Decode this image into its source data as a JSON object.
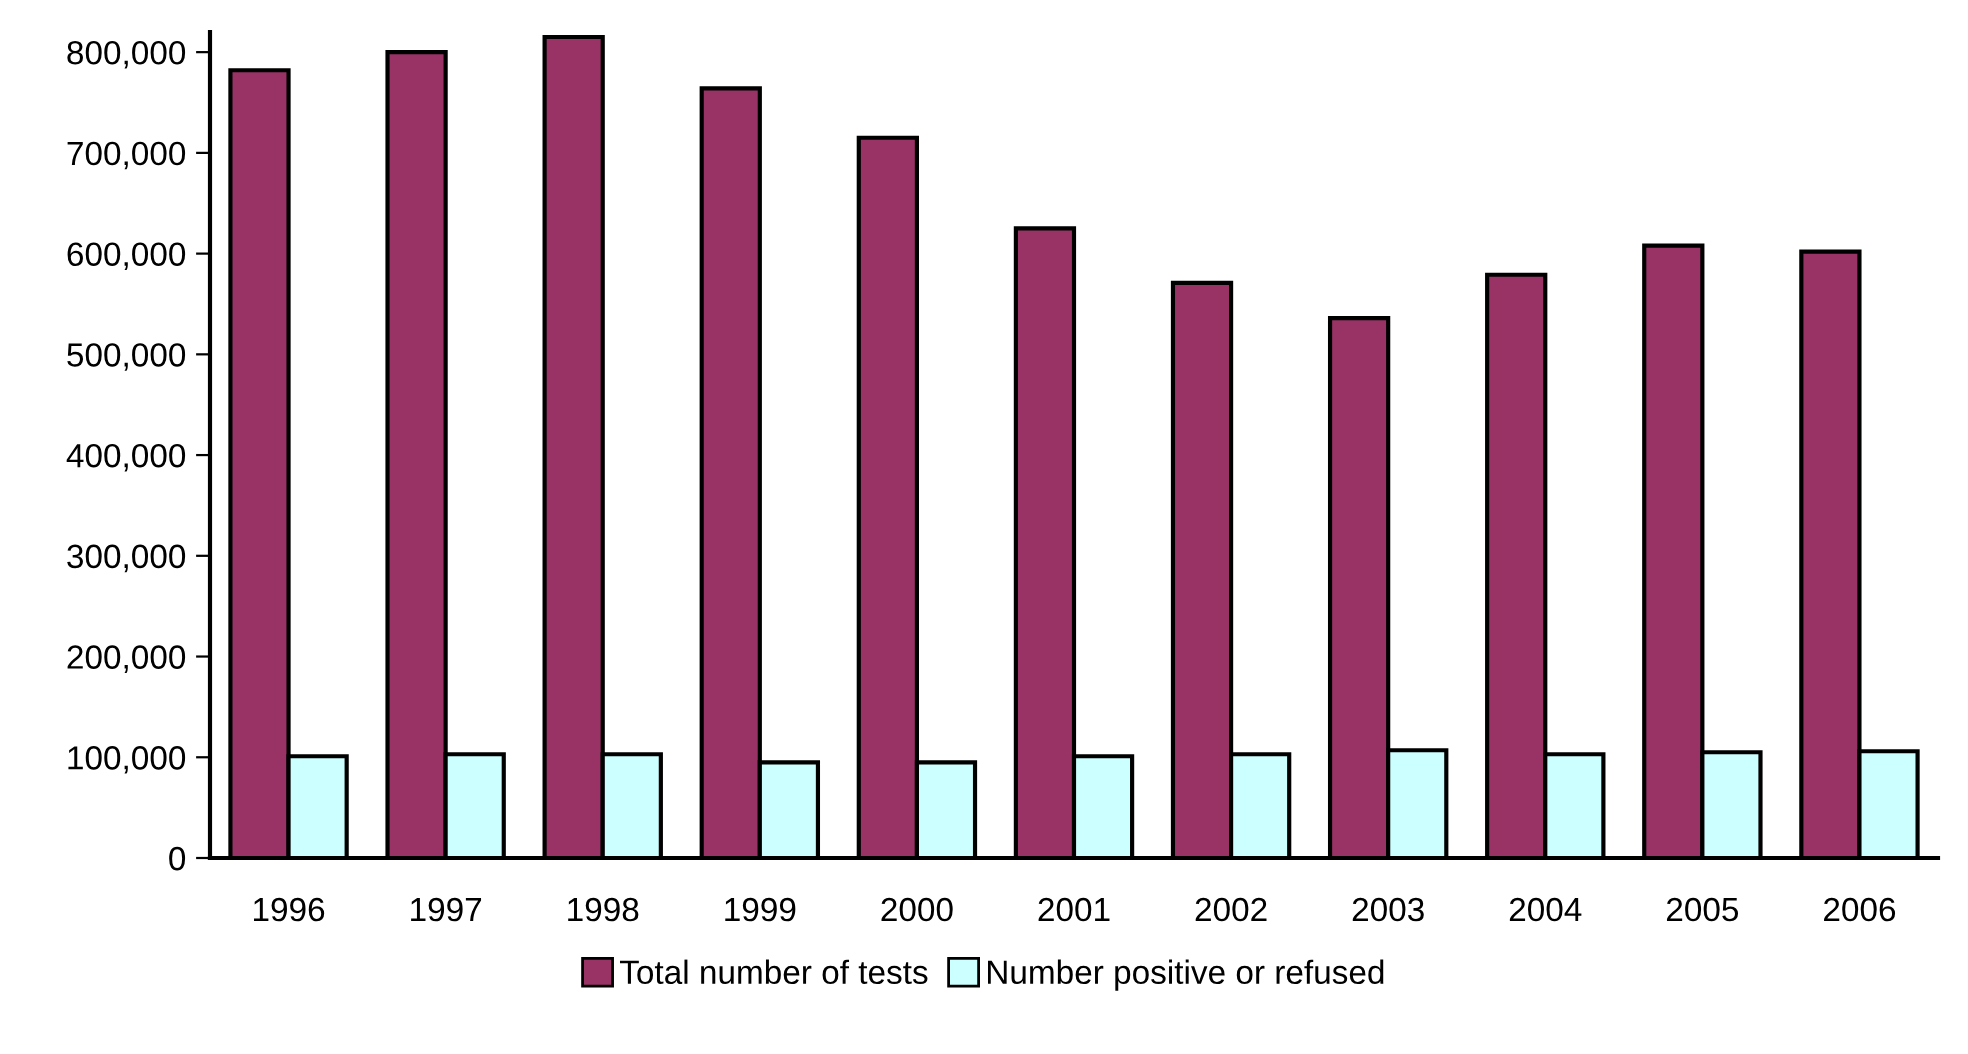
{
  "chart_data": {
    "type": "bar",
    "categories": [
      "1996",
      "1997",
      "1998",
      "1999",
      "2000",
      "2001",
      "2002",
      "2003",
      "2004",
      "2005",
      "2006"
    ],
    "series": [
      {
        "name": "Total number of tests",
        "color": "#993366",
        "values": [
          782000,
          800000,
          815000,
          764000,
          715000,
          625000,
          571000,
          536000,
          579000,
          608000,
          602000
        ]
      },
      {
        "name": "Number positive or refused",
        "color": "#ccffff",
        "values": [
          101000,
          103000,
          103000,
          95000,
          95000,
          101000,
          103000,
          107000,
          103000,
          105000,
          106000
        ]
      }
    ],
    "ylim": [
      0,
      820000
    ],
    "yticks": [
      {
        "value": 0,
        "label": "0"
      },
      {
        "value": 100000,
        "label": "100,000"
      },
      {
        "value": 200000,
        "label": "200,000"
      },
      {
        "value": 300000,
        "label": "300,000"
      },
      {
        "value": 400000,
        "label": "400,000"
      },
      {
        "value": 500000,
        "label": "500,000"
      },
      {
        "value": 600000,
        "label": "600,000"
      },
      {
        "value": 700000,
        "label": "700,000"
      },
      {
        "value": 800000,
        "label": "800,000"
      }
    ],
    "grid": false,
    "legend": "bottom"
  }
}
